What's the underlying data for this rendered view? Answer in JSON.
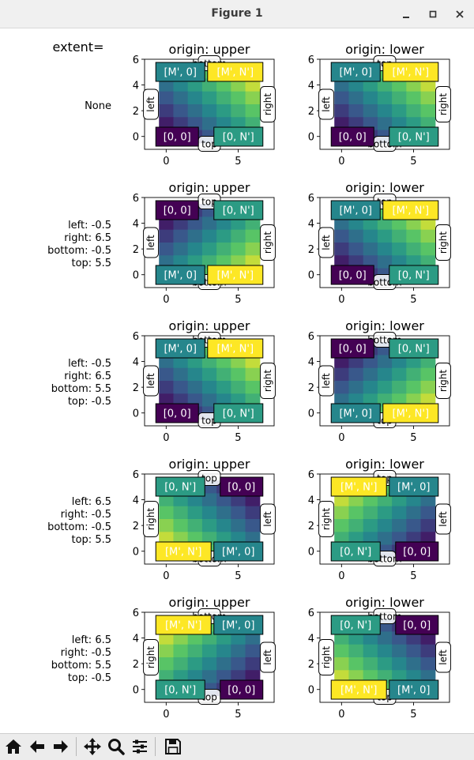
{
  "window": {
    "title": "Figure 1",
    "minimize_icon": "minimize-icon",
    "maximize_icon": "maximize-icon",
    "close_icon": "close-icon"
  },
  "figure": {
    "header_text": "extent=",
    "row_labels": [
      [
        "None"
      ],
      [
        "left: -0.5",
        "right: 6.5",
        "bottom: -0.5",
        "top: 5.5"
      ],
      [
        "left: -0.5",
        "right: 6.5",
        "bottom: 5.5",
        "top: -0.5"
      ],
      [
        "left: 6.5",
        "right: -0.5",
        "bottom: -0.5",
        "top: 5.5"
      ],
      [
        "left: 6.5",
        "right: -0.5",
        "bottom: 5.5",
        "top: -0.5"
      ]
    ]
  },
  "chart_data": {
    "type": "heatmap",
    "colormap": "viridis",
    "array_shape": [
      6,
      7
    ],
    "xticks": [
      0,
      5
    ],
    "yticks": [
      0,
      2,
      4,
      6
    ],
    "xlim": [
      -1.5,
      7.5
    ],
    "ylim": [
      -1,
      6
    ],
    "origins": [
      "upper",
      "lower"
    ],
    "title_prefix": "origin: ",
    "corner_labels": {
      "a": "[0, 0]",
      "b": "[0, N']",
      "c": "[M', 0]",
      "d": "[M', N']"
    },
    "side_labels": {
      "left": "left",
      "right": "right",
      "top": "top",
      "bottom": "bottom"
    },
    "panels": [
      {
        "row": 0,
        "origin": "upper",
        "corners": {
          "tl": "c",
          "tr": "d",
          "bl": "a",
          "br": "b"
        },
        "sides": {
          "left": "left",
          "right": "right",
          "top": "bottom",
          "bottom": "top"
        }
      },
      {
        "row": 0,
        "origin": "lower",
        "corners": {
          "tl": "c",
          "tr": "d",
          "bl": "a",
          "br": "b"
        },
        "sides": {
          "left": "left",
          "right": "right",
          "top": "top",
          "bottom": "bottom"
        }
      },
      {
        "row": 1,
        "origin": "upper",
        "corners": {
          "tl": "a",
          "tr": "b",
          "bl": "c",
          "br": "d"
        },
        "sides": {
          "left": "left",
          "right": "right",
          "top": "top",
          "bottom": "bottom"
        }
      },
      {
        "row": 1,
        "origin": "lower",
        "corners": {
          "tl": "c",
          "tr": "d",
          "bl": "a",
          "br": "b"
        },
        "sides": {
          "left": "left",
          "right": "right",
          "top": "top",
          "bottom": "bottom"
        }
      },
      {
        "row": 2,
        "origin": "upper",
        "corners": {
          "tl": "c",
          "tr": "d",
          "bl": "a",
          "br": "b"
        },
        "sides": {
          "left": "left",
          "right": "right",
          "top": "bottom",
          "bottom": "top"
        }
      },
      {
        "row": 2,
        "origin": "lower",
        "corners": {
          "tl": "a",
          "tr": "b",
          "bl": "c",
          "br": "d"
        },
        "sides": {
          "left": "left",
          "right": "right",
          "top": "bottom",
          "bottom": "top"
        }
      },
      {
        "row": 3,
        "origin": "upper",
        "corners": {
          "tl": "b",
          "tr": "a",
          "bl": "d",
          "br": "c"
        },
        "sides": {
          "left": "right",
          "right": "left",
          "top": "top",
          "bottom": "bottom"
        }
      },
      {
        "row": 3,
        "origin": "lower",
        "corners": {
          "tl": "d",
          "tr": "c",
          "bl": "b",
          "br": "a"
        },
        "sides": {
          "left": "right",
          "right": "left",
          "top": "top",
          "bottom": "bottom"
        }
      },
      {
        "row": 4,
        "origin": "upper",
        "corners": {
          "tl": "d",
          "tr": "c",
          "bl": "b",
          "br": "a"
        },
        "sides": {
          "left": "right",
          "right": "left",
          "top": "bottom",
          "bottom": "top"
        }
      },
      {
        "row": 4,
        "origin": "lower",
        "corners": {
          "tl": "b",
          "tr": "a",
          "bl": "d",
          "br": "c"
        },
        "sides": {
          "left": "right",
          "right": "left",
          "top": "bottom",
          "bottom": "top"
        }
      }
    ]
  },
  "toolbar": {
    "buttons": [
      {
        "name": "home-icon",
        "tooltip": "Home"
      },
      {
        "name": "back-arrow-icon",
        "tooltip": "Back"
      },
      {
        "name": "forward-arrow-icon",
        "tooltip": "Forward"
      },
      {
        "name": "pan-icon",
        "tooltip": "Pan"
      },
      {
        "name": "zoom-icon",
        "tooltip": "Zoom"
      },
      {
        "name": "configure-subplots-icon",
        "tooltip": "Subplots"
      },
      {
        "name": "save-icon",
        "tooltip": "Save"
      }
    ]
  }
}
